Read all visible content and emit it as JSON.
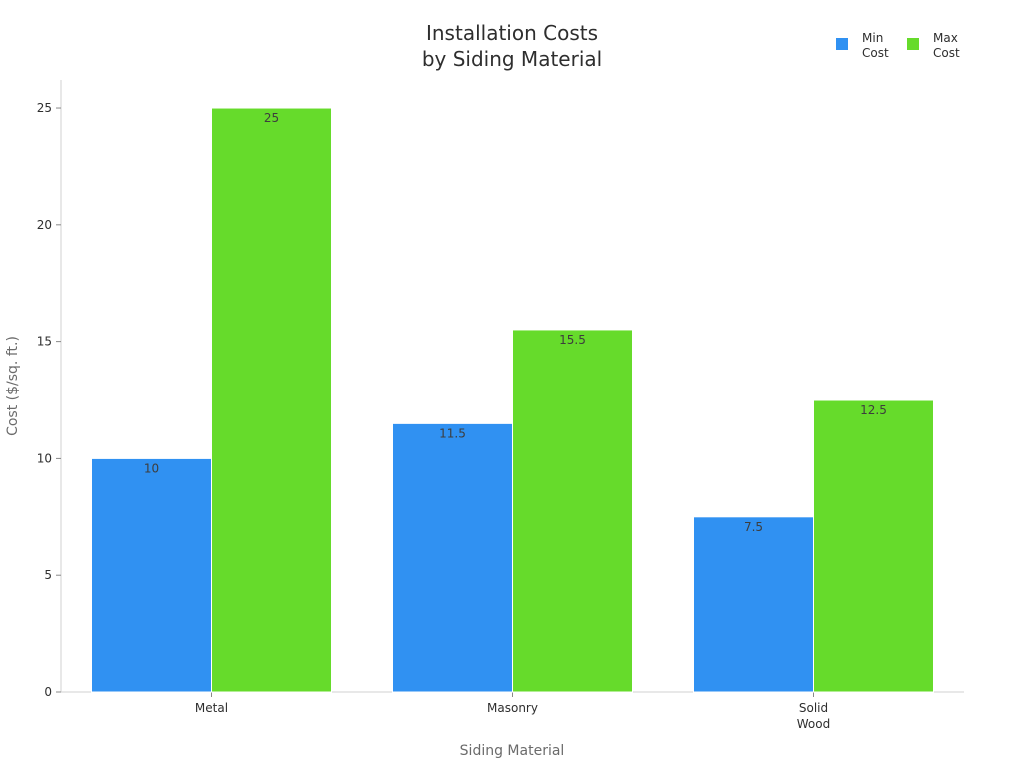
{
  "chart_data": {
    "type": "bar",
    "title": [
      "Installation Costs",
      "by Siding Material"
    ],
    "xlabel": "Siding Material",
    "ylabel": "Cost ($/sq. ft.)",
    "categories": [
      [
        "Metal"
      ],
      [
        "Masonry"
      ],
      [
        "Solid",
        "Wood"
      ]
    ],
    "series": [
      {
        "name": [
          "Min",
          "Cost"
        ],
        "color": "#3091f2",
        "values": [
          10,
          11.5,
          7.5
        ],
        "labels": [
          "10",
          "11.5",
          "7.5"
        ]
      },
      {
        "name": [
          "Max",
          "Cost"
        ],
        "color": "#66db2b",
        "values": [
          25,
          15.5,
          12.5
        ],
        "labels": [
          "25",
          "15.5",
          "12.5"
        ]
      }
    ],
    "ylim": [
      0,
      26.2
    ],
    "yticks": [
      0,
      5,
      10,
      15,
      20,
      25
    ],
    "grid": false,
    "legend_position": "top-right"
  }
}
